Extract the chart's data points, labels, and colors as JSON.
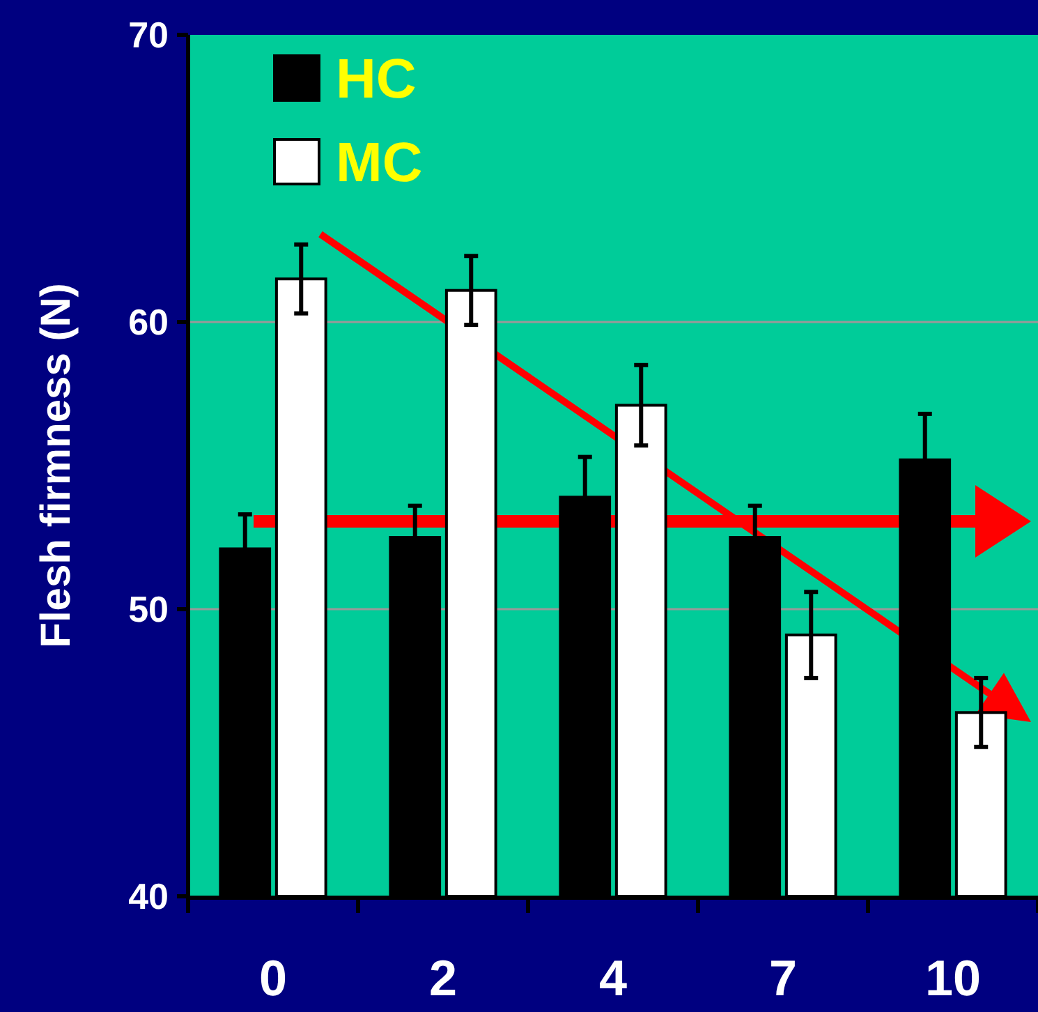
{
  "chart_data": {
    "type": "bar",
    "ylabel": "Flesh firmness (N)",
    "categories": [
      "0",
      "2",
      "4",
      "7",
      "10"
    ],
    "series": [
      {
        "name": "HC",
        "color": "#000000",
        "values": [
          52.1,
          52.5,
          53.9,
          52.5,
          55.2
        ],
        "errors": [
          1.2,
          1.1,
          1.4,
          1.1,
          1.6
        ]
      },
      {
        "name": "MC",
        "color": "#ffffff",
        "values": [
          61.5,
          61.1,
          57.1,
          49.1,
          46.4
        ],
        "errors": [
          1.2,
          1.2,
          1.4,
          1.5,
          1.2
        ]
      }
    ],
    "ylim": [
      40,
      70
    ],
    "yticks": [
      40,
      50,
      60,
      70
    ],
    "grid": "y",
    "legend": "top left"
  }
}
